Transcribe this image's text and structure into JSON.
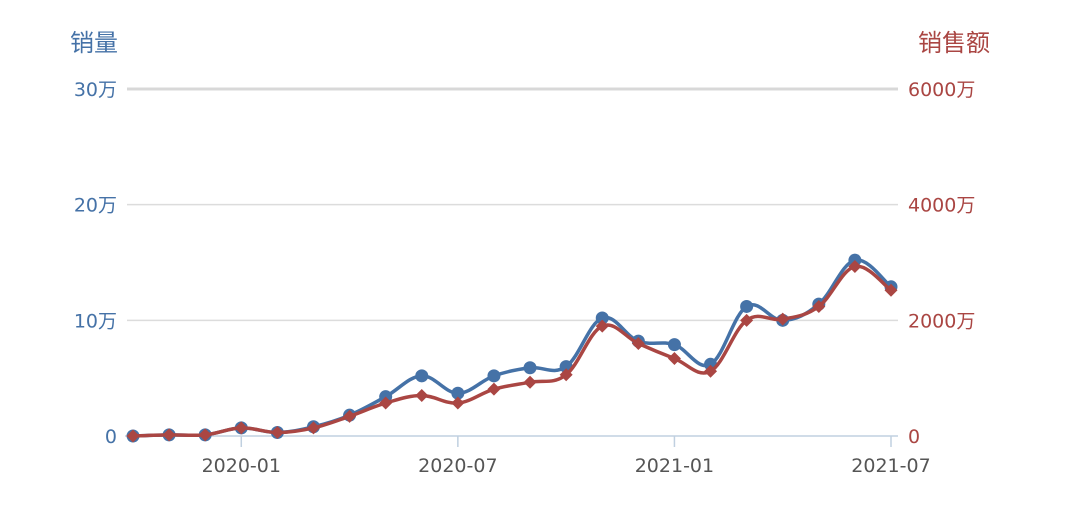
{
  "chart_data": {
    "type": "line",
    "title": "",
    "left_axis": {
      "label": "销量",
      "unit": "万",
      "ylim": [
        0,
        300000
      ],
      "ticks": [
        "0",
        "10万",
        "20万",
        "30万"
      ],
      "color": "#4572a7"
    },
    "right_axis": {
      "label": "销售额",
      "unit": "万",
      "ylim": [
        0,
        60000000
      ],
      "ticks": [
        "0",
        "2000万",
        "4000万",
        "6000万"
      ],
      "color": "#aa4643"
    },
    "x_ticks": [
      "2020-01",
      "2020-07",
      "2021-01",
      "2021-07"
    ],
    "x": [
      "2019-10",
      "2019-11",
      "2019-12",
      "2020-01",
      "2020-02",
      "2020-03",
      "2020-04",
      "2020-05",
      "2020-06",
      "2020-07",
      "2020-08",
      "2020-09",
      "2020-10",
      "2020-11",
      "2020-12",
      "2021-01",
      "2021-02",
      "2021-03",
      "2021-04",
      "2021-05",
      "2021-06",
      "2021-07"
    ],
    "series": [
      {
        "axis": "left",
        "marker": "circle",
        "color": "#4572a7",
        "values": [
          0,
          1000,
          1000,
          7000,
          3000,
          8000,
          18000,
          34000,
          52000,
          37000,
          52000,
          59000,
          60000,
          102000,
          82000,
          79000,
          62000,
          112000,
          100000,
          114000,
          152000,
          129000
        ]
      },
      {
        "axis": "right",
        "marker": "diamond",
        "color": "#aa4643",
        "values": [
          0,
          200000,
          200000,
          1400000,
          600000,
          1400000,
          3400000,
          5700000,
          7000000,
          5700000,
          8100000,
          9300000,
          10600000,
          19000000,
          16000000,
          13400000,
          11200000,
          20000000,
          20200000,
          22400000,
          29300000,
          25200000
        ]
      }
    ],
    "grid": true,
    "legend": "none"
  }
}
